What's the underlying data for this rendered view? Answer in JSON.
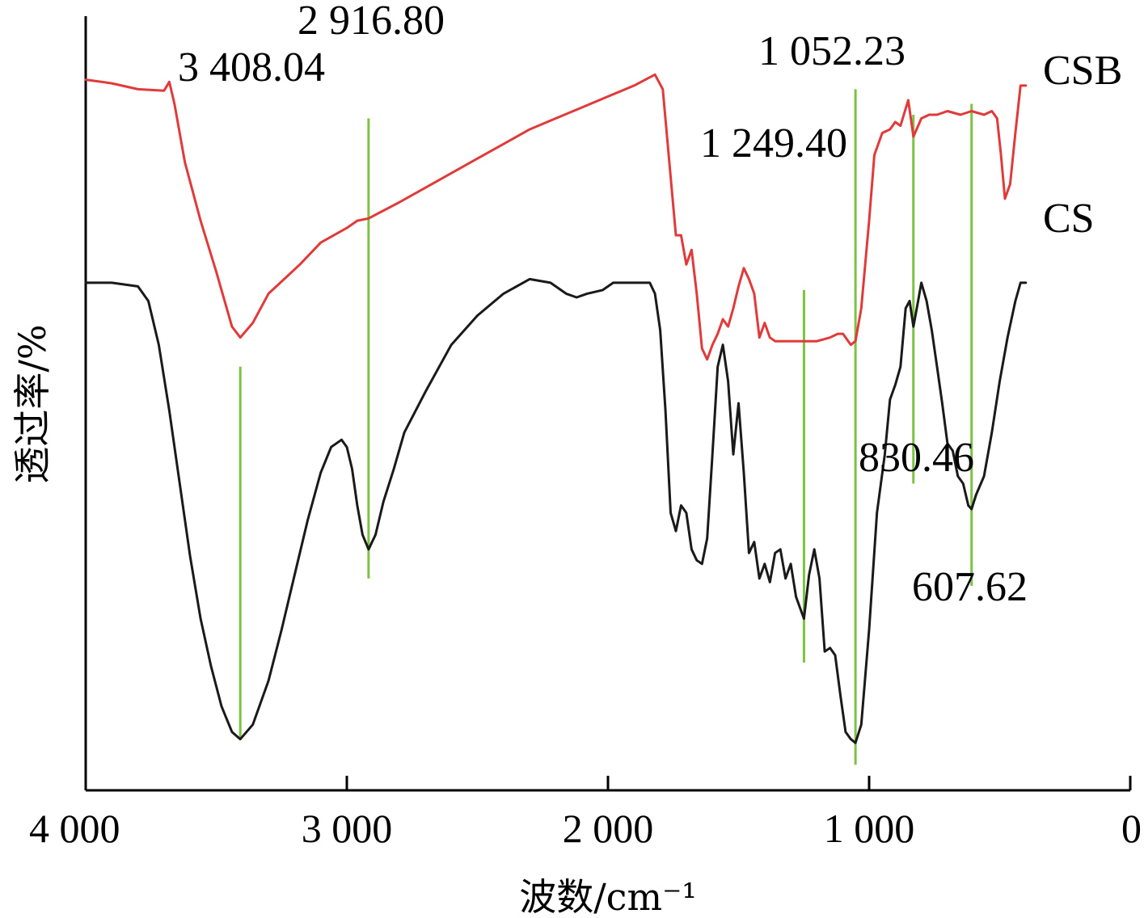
{
  "chart_data": {
    "type": "line",
    "title": "",
    "xlabel": "波数/cm⁻¹",
    "ylabel": "透过率/%",
    "xlim": [
      4000,
      0
    ],
    "x_reversed": true,
    "x_ticks": [
      4000,
      3000,
      2000,
      1000,
      0
    ],
    "x_tick_labels": [
      "4 000",
      "3 000",
      "2 000",
      "1 000",
      "0"
    ],
    "y_ticks_shown": false,
    "grid": false,
    "colors": {
      "CSB": "#e03a3a",
      "CS": "#1a1a1a",
      "marker": "#7dc242"
    },
    "series": [
      {
        "name": "CSB",
        "note_units": "relative transmittance (arbitrary, offset)",
        "x": [
          4000,
          3900,
          3800,
          3700,
          3680,
          3660,
          3620,
          3560,
          3500,
          3440,
          3408,
          3360,
          3300,
          3240,
          3180,
          3100,
          3000,
          2960,
          2916.8,
          2880,
          2800,
          2700,
          2600,
          2500,
          2400,
          2300,
          2200,
          2100,
          2000,
          1900,
          1820,
          1790,
          1760,
          1740,
          1720,
          1700,
          1680,
          1660,
          1640,
          1620,
          1600,
          1580,
          1560,
          1540,
          1520,
          1500,
          1480,
          1460,
          1440,
          1420,
          1400,
          1380,
          1360,
          1340,
          1300,
          1249.4,
          1200,
          1150,
          1120,
          1100,
          1070,
          1052.23,
          1030,
          1000,
          980,
          950,
          920,
          900,
          880,
          850,
          830.46,
          800,
          770,
          740,
          700,
          650,
          607.62,
          560,
          530,
          510,
          495,
          480,
          460,
          440,
          420,
          400
        ],
        "y": [
          81.3,
          80.8,
          80.0,
          79.8,
          81.0,
          78.0,
          70.0,
          62.0,
          55.0,
          47.5,
          46.0,
          48.0,
          52.0,
          54.0,
          56.0,
          59.0,
          61.0,
          62.0,
          62.3,
          63.0,
          64.5,
          66.5,
          68.5,
          70.5,
          72.5,
          74.5,
          76.0,
          77.5,
          79.0,
          80.5,
          82.0,
          80.0,
          68.0,
          60.0,
          60.0,
          56.0,
          58.0,
          52.0,
          44.5,
          43.0,
          45.0,
          46.5,
          48.5,
          47.5,
          50.0,
          53.0,
          55.5,
          54.0,
          52.0,
          46.0,
          48.0,
          46.0,
          45.5,
          45.5,
          45.5,
          45.5,
          45.5,
          46.0,
          46.5,
          46.5,
          45.0,
          45.5,
          50.0,
          62.0,
          71.0,
          74.0,
          74.5,
          75.5,
          75.0,
          78.5,
          73.5,
          76.0,
          76.5,
          76.5,
          77.0,
          76.5,
          77.0,
          76.5,
          77.0,
          76.0,
          71.0,
          65.0,
          67.0,
          74.0,
          80.5,
          80.5
        ]
      },
      {
        "name": "CS",
        "note_units": "relative transmittance (arbitrary, offset)",
        "x": [
          4000,
          3900,
          3800,
          3760,
          3720,
          3680,
          3640,
          3600,
          3560,
          3520,
          3480,
          3440,
          3408.04,
          3360,
          3300,
          3250,
          3200,
          3150,
          3100,
          3060,
          3020,
          3000,
          2980,
          2960,
          2940,
          2916.8,
          2890,
          2860,
          2820,
          2780,
          2700,
          2600,
          2500,
          2400,
          2300,
          2220,
          2160,
          2120,
          2080,
          2020,
          1980,
          1900,
          1840,
          1820,
          1800,
          1780,
          1760,
          1740,
          1720,
          1700,
          1680,
          1660,
          1640,
          1620,
          1600,
          1580,
          1560,
          1540,
          1520,
          1500,
          1480,
          1460,
          1440,
          1420,
          1400,
          1380,
          1360,
          1340,
          1320,
          1300,
          1280,
          1249.4,
          1230,
          1210,
          1190,
          1170,
          1150,
          1130,
          1110,
          1090,
          1070,
          1052.23,
          1030,
          1000,
          970,
          940,
          920,
          900,
          880,
          860,
          845,
          830.46,
          815,
          800,
          780,
          760,
          740,
          720,
          700,
          680,
          660,
          640,
          620,
          607.62,
          590,
          560,
          530,
          500,
          470,
          440,
          420,
          400
        ],
        "y": [
          53.5,
          53.5,
          53.0,
          51.0,
          45.0,
          36.0,
          26.0,
          16.0,
          7.5,
          1.0,
          -4.5,
          -8.0,
          -9.0,
          -7.0,
          -1.0,
          6.0,
          13.5,
          21.0,
          27.5,
          31.0,
          32.0,
          31.0,
          28.0,
          23.0,
          19.0,
          17.0,
          19.0,
          23.5,
          28.0,
          33.0,
          38.5,
          45.0,
          49.0,
          52.0,
          54.0,
          53.5,
          52.0,
          51.5,
          52.0,
          52.5,
          53.5,
          53.5,
          53.5,
          52.0,
          47.0,
          36.0,
          22.0,
          19.5,
          23.0,
          22.0,
          17.0,
          15.5,
          15.0,
          18.5,
          30.0,
          42.0,
          45.0,
          40.0,
          30.0,
          37.0,
          27.5,
          16.5,
          18.0,
          13.0,
          15.0,
          12.5,
          16.5,
          17.0,
          13.0,
          15.0,
          10.5,
          7.5,
          13.5,
          17.0,
          13.0,
          3.0,
          3.5,
          2.5,
          -3.0,
          -8.0,
          -9.0,
          -9.5,
          -7.0,
          6.0,
          22.0,
          30.0,
          37.5,
          39.5,
          42.0,
          50.0,
          51.0,
          47.5,
          50.5,
          53.5,
          51.0,
          47.0,
          42.0,
          37.0,
          31.5,
          30.5,
          27.0,
          26.0,
          23.0,
          22.5,
          24.5,
          27.0,
          33.0,
          40.0,
          46.0,
          51.0,
          53.5,
          53.5
        ]
      }
    ],
    "series_labels": [
      "CSB",
      "CS"
    ],
    "annotations": [
      {
        "text": "3 408.04",
        "x": 3408.04,
        "line_y": [
          42.0,
          -9.0
        ]
      },
      {
        "text": "2 916.80",
        "x": 2916.8,
        "line_y": [
          76.0,
          13.0
        ]
      },
      {
        "text": "1 249.40",
        "x": 1249.4,
        "line_y": [
          52.5,
          1.5
        ]
      },
      {
        "text": "1 052.23",
        "x": 1052.23,
        "line_y": [
          80.0,
          -12.5
        ]
      },
      {
        "text": "830.46",
        "x": 830.46,
        "line_y": [
          76.5,
          26.0
        ]
      },
      {
        "text": "607.62",
        "x": 607.62,
        "line_y": [
          78.0,
          12.0
        ]
      }
    ],
    "ylim": [
      -16,
      90
    ]
  }
}
